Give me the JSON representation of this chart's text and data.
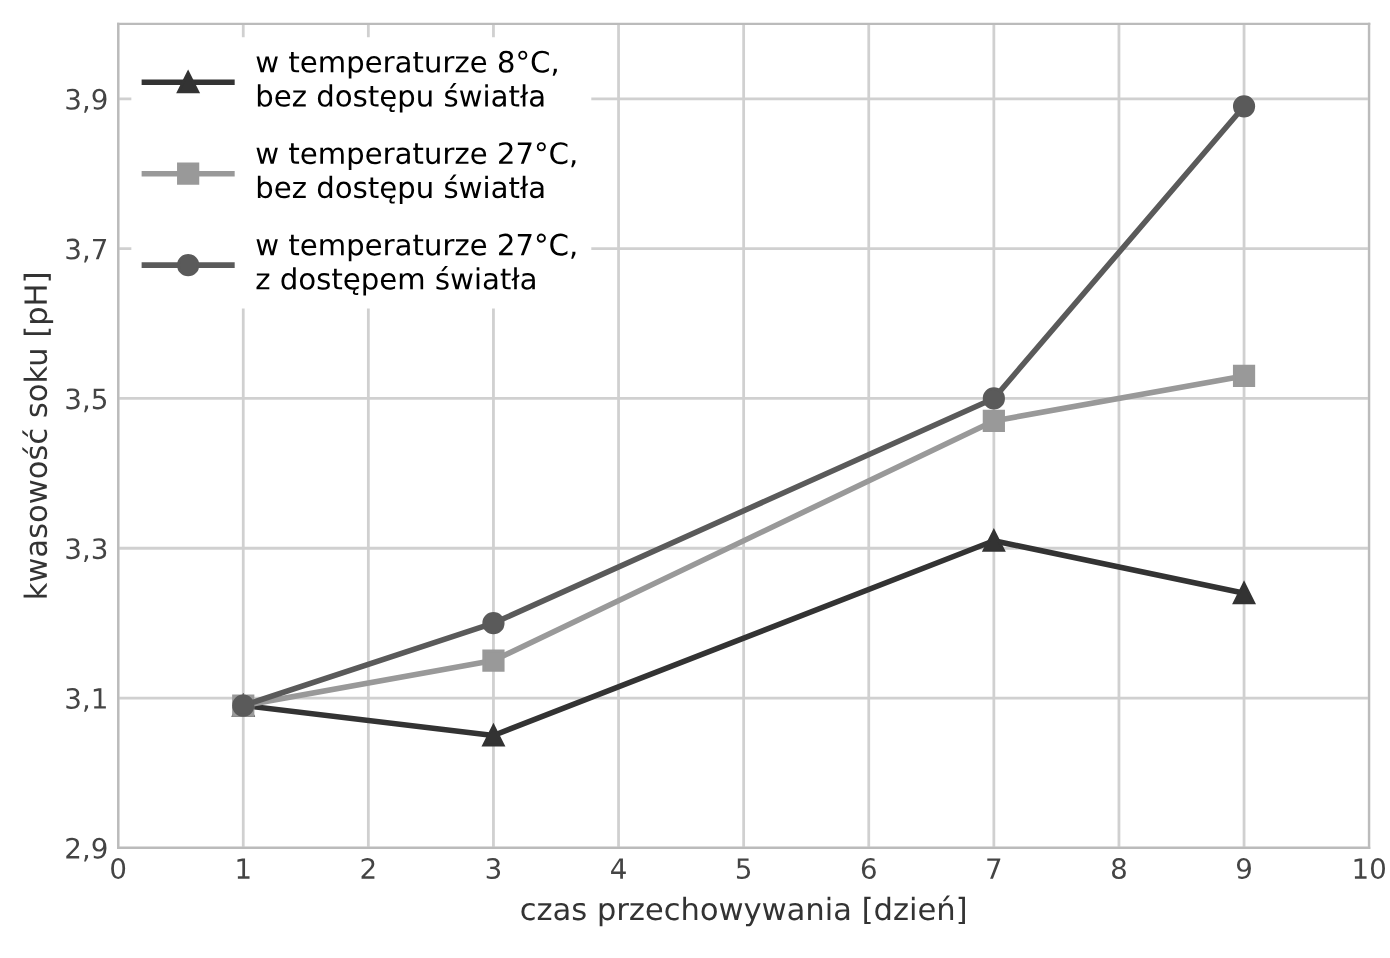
{
  "chart_data": {
    "type": "line",
    "xlabel": "czas przechowywania [dzień]",
    "ylabel": "kwasowość soku [pH]",
    "x": [
      1,
      3,
      7,
      9
    ],
    "series": [
      {
        "name": "w temperaturze 8°C,\nbez dostępu światła",
        "color": "#333333",
        "marker": "triangle",
        "values": [
          3.09,
          3.05,
          3.31,
          3.24
        ]
      },
      {
        "name": "w temperaturze 27°C,\nbez dostępu światła",
        "color": "#999999",
        "marker": "square",
        "values": [
          3.09,
          3.15,
          3.47,
          3.53
        ]
      },
      {
        "name": "w temperaturze 27°C,\nz dostępem światła",
        "color": "#5a5a5a",
        "marker": "circle",
        "values": [
          3.09,
          3.2,
          3.5,
          3.89
        ]
      }
    ],
    "xlim": [
      0,
      10
    ],
    "xticks": [
      0,
      1,
      2,
      3,
      4,
      5,
      6,
      7,
      8,
      9,
      10
    ],
    "ylim": [
      2.9,
      4.0
    ],
    "yticks": [
      {
        "value": 2.9,
        "label": "2,9"
      },
      {
        "value": 3.1,
        "label": "3,1"
      },
      {
        "value": 3.3,
        "label": "3,3"
      },
      {
        "value": 3.5,
        "label": "3,5"
      },
      {
        "value": 3.7,
        "label": "3,7"
      },
      {
        "value": 3.9,
        "label": "3,9"
      }
    ],
    "grid": true,
    "legend": "top left",
    "line_style": "solid"
  }
}
